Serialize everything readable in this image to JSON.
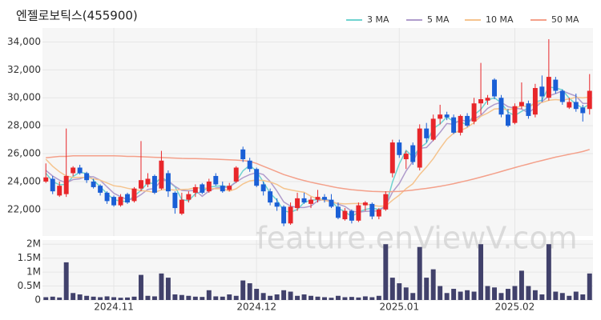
{
  "chart_data": {
    "type": "candlestick",
    "title": "엔젤로보틱스(455900)",
    "watermark": "feature.enViewV.com",
    "up_color": "#e8262a",
    "down_color": "#1a5fd6",
    "categories": [
      null,
      null,
      null,
      null,
      null,
      null,
      null,
      null,
      null,
      null,
      "2024.11",
      null,
      null,
      null,
      null,
      null,
      null,
      null,
      null,
      null,
      null,
      null,
      null,
      null,
      null,
      null,
      null,
      null,
      null,
      null,
      null,
      "2024.12",
      null,
      null,
      null,
      null,
      null,
      null,
      null,
      null,
      null,
      null,
      null,
      null,
      null,
      null,
      null,
      null,
      null,
      null,
      null,
      null,
      "2025.01",
      null,
      null,
      null,
      null,
      null,
      null,
      null,
      null,
      null,
      null,
      null,
      null,
      null,
      null,
      null,
      null,
      "2025.02",
      null,
      null,
      null,
      null,
      null,
      null,
      null,
      null,
      null,
      null,
      null
    ],
    "open": [
      24000,
      24200,
      23000,
      23100,
      24600,
      25000,
      24600,
      24000,
      23700,
      23200,
      22900,
      22300,
      23100,
      22600,
      23500,
      23800,
      24400,
      23500,
      24600,
      23200,
      21700,
      22700,
      23200,
      23800,
      23300,
      24400,
      23700,
      23400,
      24000,
      26300,
      25500,
      24900,
      23800,
      23300,
      22500,
      22200,
      21000,
      22100,
      22800,
      22400,
      22700,
      22900,
      22700,
      22200,
      21300,
      21900,
      21200,
      22300,
      22400,
      21500,
      22000,
      24600,
      26800,
      25600,
      26600,
      25000,
      27800,
      27000,
      28500,
      28800,
      28600,
      27500,
      28700,
      28300,
      29600,
      29800,
      31300,
      30000,
      28800,
      28200,
      29400,
      29600,
      28800,
      30800,
      30000,
      31300,
      30500,
      29300,
      29700,
      29300,
      29200
    ],
    "high": [
      25300,
      24400,
      24000,
      27800,
      25100,
      25200,
      24700,
      24200,
      23800,
      23300,
      23000,
      23100,
      23200,
      23600,
      26900,
      24600,
      24500,
      26200,
      24800,
      23300,
      23200,
      23300,
      23800,
      23900,
      24200,
      24600,
      24000,
      23900,
      25100,
      26500,
      25700,
      25000,
      24000,
      23500,
      22800,
      22300,
      22500,
      23200,
      23200,
      22900,
      23400,
      23100,
      23100,
      22500,
      22100,
      22000,
      22500,
      22600,
      22500,
      22100,
      23300,
      27000,
      27000,
      26200,
      26800,
      28100,
      28200,
      28800,
      29500,
      29000,
      28800,
      28800,
      28900,
      30000,
      32500,
      30200,
      31400,
      30200,
      29200,
      29600,
      31100,
      29800,
      31000,
      31600,
      34200,
      31500,
      30600,
      30000,
      30300,
      29500,
      31700
    ],
    "low": [
      23900,
      23100,
      22900,
      22900,
      24400,
      24500,
      23900,
      23500,
      23000,
      22400,
      22200,
      22200,
      22400,
      22500,
      23300,
      23600,
      23100,
      23400,
      22900,
      21700,
      21600,
      22500,
      22900,
      23100,
      23200,
      23700,
      23200,
      23300,
      23900,
      25400,
      24700,
      23600,
      23000,
      22300,
      21900,
      20800,
      20900,
      21900,
      22400,
      22100,
      22500,
      22500,
      22100,
      21300,
      21200,
      21000,
      21100,
      21900,
      21300,
      21300,
      21900,
      24300,
      25700,
      24900,
      25200,
      24800,
      26800,
      26900,
      28100,
      28400,
      27400,
      27300,
      27900,
      28100,
      28800,
      29500,
      29900,
      28600,
      27900,
      28100,
      29200,
      28500,
      28600,
      29700,
      29800,
      30300,
      29500,
      29200,
      29000,
      28300,
      28800
    ],
    "close": [
      24300,
      23300,
      23700,
      24400,
      25000,
      24600,
      24100,
      23600,
      23200,
      22600,
      22300,
      22900,
      22500,
      23500,
      24100,
      24200,
      23200,
      25500,
      23300,
      22100,
      22700,
      23100,
      23600,
      23200,
      24000,
      23800,
      23300,
      23700,
      25000,
      25600,
      24900,
      23700,
      23300,
      22500,
      22200,
      21000,
      22200,
      22800,
      22500,
      22700,
      22900,
      22700,
      22200,
      21400,
      21900,
      21200,
      22300,
      22500,
      21500,
      22000,
      23100,
      26800,
      25900,
      26000,
      25400,
      27800,
      27100,
      28500,
      28800,
      28600,
      27500,
      28700,
      28000,
      29600,
      29900,
      30000,
      30100,
      28800,
      28000,
      29400,
      29700,
      28700,
      30700,
      30100,
      31500,
      30500,
      29700,
      29700,
      29200,
      28900,
      30500
    ],
    "ylim": [
      20100,
      35000
    ],
    "yticks": [
      {
        "value": 22000,
        "label": "22,000"
      },
      {
        "value": 24000,
        "label": "24,000"
      },
      {
        "value": 26000,
        "label": "26,000"
      },
      {
        "value": 28000,
        "label": "28,000"
      },
      {
        "value": 30000,
        "label": "30,000"
      },
      {
        "value": 32000,
        "label": "32,000"
      },
      {
        "value": 34000,
        "label": "34,000"
      }
    ],
    "series": [
      {
        "name": "3 MA",
        "color": "#6fd3d0",
        "values": [
          24600,
          24000,
          23770,
          23800,
          24370,
          24670,
          24570,
          24100,
          23630,
          23130,
          22700,
          22600,
          22570,
          22970,
          23370,
          23930,
          23830,
          24300,
          24000,
          23630,
          22700,
          22630,
          23130,
          23300,
          23600,
          23670,
          23700,
          23600,
          24000,
          24770,
          25170,
          24730,
          23970,
          23170,
          22670,
          21900,
          21800,
          22000,
          22500,
          22670,
          22700,
          22770,
          22600,
          22100,
          21830,
          21500,
          21800,
          22000,
          22100,
          22000,
          22200,
          23970,
          25270,
          26230,
          25770,
          26400,
          26770,
          27800,
          28130,
          28630,
          28300,
          28270,
          28070,
          28770,
          29170,
          29830,
          30000,
          29630,
          28970,
          28730,
          29030,
          29270,
          29700,
          29830,
          30770,
          30700,
          30570,
          29970,
          29530,
          29270,
          29530
        ]
      },
      {
        "name": "5 MA",
        "color": "#b09ccc",
        "values": [
          24800,
          24400,
          24100,
          23900,
          24140,
          24200,
          24360,
          24340,
          24100,
          23620,
          23160,
          22920,
          22700,
          22760,
          23060,
          23440,
          23500,
          24100,
          24060,
          23660,
          23360,
          23340,
          23360,
          22940,
          23320,
          23540,
          23580,
          23600,
          23960,
          24280,
          24500,
          24640,
          24500,
          24000,
          23320,
          22540,
          22240,
          22140,
          22140,
          22240,
          22620,
          22720,
          22600,
          22380,
          22220,
          21880,
          21800,
          21860,
          21880,
          21900,
          22280,
          23240,
          23860,
          24760,
          25440,
          26380,
          26440,
          26960,
          27520,
          28160,
          28100,
          28420,
          28320,
          28480,
          28740,
          29240,
          29520,
          29680,
          29360,
          29260,
          29200,
          28920,
          29300,
          29720,
          30140,
          30300,
          30500,
          30300,
          30120,
          29600,
          29600
        ]
      },
      {
        "name": "10 MA",
        "color": "#f5c48e",
        "values": [
          25600,
          25100,
          24700,
          24400,
          24300,
          24300,
          24300,
          24200,
          24100,
          23900,
          23700,
          23640,
          23520,
          23430,
          23350,
          23310,
          23220,
          23410,
          23440,
          23390,
          23430,
          23450,
          23560,
          23530,
          23520,
          23480,
          23490,
          23310,
          23480,
          23830,
          24050,
          24110,
          24080,
          23970,
          23790,
          23510,
          23400,
          23310,
          23230,
          22950,
          22750,
          22650,
          22540,
          22430,
          22400,
          22420,
          22430,
          22400,
          22300,
          22230,
          22250,
          22660,
          23030,
          23490,
          23840,
          24500,
          25040,
          25640,
          26370,
          27030,
          27470,
          27660,
          27870,
          28230,
          28680,
          28900,
          29200,
          29230,
          29150,
          29230,
          29440,
          29340,
          29610,
          29660,
          29820,
          29870,
          29830,
          29920,
          30040,
          29990,
          30060
        ]
      },
      {
        "name": "50 MA",
        "color": "#f4a08a",
        "values": [
          25700,
          25750,
          25800,
          25800,
          25850,
          25850,
          25850,
          25850,
          25850,
          25850,
          25850,
          25830,
          25800,
          25800,
          25780,
          25760,
          25740,
          25720,
          25700,
          25680,
          25660,
          25650,
          25640,
          25630,
          25620,
          25600,
          25580,
          25560,
          25540,
          25500,
          25450,
          25300,
          25100,
          24900,
          24700,
          24500,
          24350,
          24200,
          24070,
          23950,
          23850,
          23750,
          23650,
          23550,
          23480,
          23420,
          23370,
          23330,
          23300,
          23280,
          23270,
          23280,
          23300,
          23340,
          23390,
          23450,
          23510,
          23580,
          23660,
          23750,
          23850,
          23960,
          24070,
          24190,
          24320,
          24450,
          24580,
          24720,
          24860,
          25000,
          25130,
          25260,
          25390,
          25510,
          25630,
          25750,
          25850,
          25950,
          26050,
          26150,
          26300
        ]
      }
    ],
    "volume": {
      "color": "#41416b",
      "values": [
        100000,
        120000,
        90000,
        1350000,
        250000,
        200000,
        150000,
        120000,
        100000,
        130000,
        100000,
        80000,
        90000,
        120000,
        900000,
        150000,
        130000,
        950000,
        800000,
        200000,
        180000,
        150000,
        120000,
        110000,
        350000,
        130000,
        120000,
        200000,
        150000,
        700000,
        600000,
        400000,
        250000,
        150000,
        200000,
        350000,
        300000,
        150000,
        200000,
        150000,
        120000,
        100000,
        80000,
        150000,
        100000,
        110000,
        90000,
        130000,
        100000,
        150000,
        2000000,
        800000,
        600000,
        450000,
        250000,
        1900000,
        800000,
        1100000,
        500000,
        250000,
        400000,
        300000,
        350000,
        300000,
        2000000,
        500000,
        450000,
        250000,
        400000,
        500000,
        1050000,
        500000,
        350000,
        200000,
        2000000,
        300000,
        250000,
        150000,
        300000,
        200000,
        950000
      ],
      "ylim": [
        0,
        2150000
      ],
      "yticks": [
        0,
        {
          "value": 500000,
          "label": "0.5M"
        },
        {
          "value": 1000000,
          "label": "1M"
        },
        {
          "value": 1500000,
          "label": "1.5M"
        },
        {
          "value": 2000000,
          "label": "2M"
        }
      ]
    }
  }
}
